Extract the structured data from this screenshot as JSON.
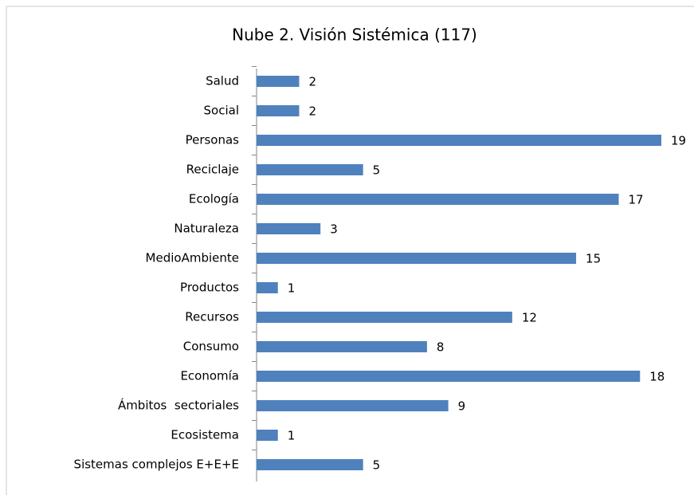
{
  "chart_data": {
    "type": "bar",
    "orientation": "horizontal",
    "title": "Nube 2. Visión Sistémica (117)",
    "categories": [
      "Salud",
      "Social",
      "Personas",
      "Reciclaje",
      "Ecología",
      "Naturaleza",
      "MedioAmbiente",
      "Productos",
      "Recursos",
      "Consumo",
      "Economía",
      "Ámbitos  sectoriales",
      "Ecosistema",
      "Sistemas complejos E+E+E"
    ],
    "values": [
      2,
      2,
      19,
      5,
      17,
      3,
      15,
      1,
      12,
      8,
      18,
      9,
      1,
      5
    ],
    "color": "#4f81bd"
  }
}
